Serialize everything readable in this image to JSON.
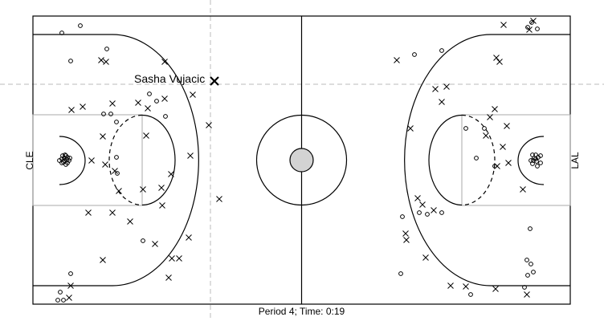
{
  "chart_data": {
    "type": "scatter",
    "title": "",
    "team_left": "CLE",
    "team_right": "LAL",
    "caption": "Period 4; Time: 0:19",
    "highlight": {
      "player": "Sasha Vujacic",
      "x": 267,
      "y": 101,
      "result": "miss"
    },
    "crosshair": {
      "x": 262,
      "y": 105
    },
    "series": [
      {
        "result": "made",
        "marker": "circle",
        "points": [
          [
            77,
            41
          ],
          [
            100,
            32
          ],
          [
            88,
            76
          ],
          [
            133,
            61
          ],
          [
            186,
            117
          ],
          [
            145,
            152
          ],
          [
            138,
            142
          ],
          [
            129,
            142
          ],
          [
            145,
            196
          ],
          [
            146,
            216
          ],
          [
            195,
            126
          ],
          [
            206,
            145
          ],
          [
            178,
            300
          ],
          [
            88,
            341
          ],
          [
            75,
            364
          ],
          [
            72,
            374
          ],
          [
            79,
            374
          ],
          [
            78,
            194
          ],
          [
            82,
            194
          ],
          [
            84,
            196
          ],
          [
            80,
            197
          ],
          [
            77,
            198
          ],
          [
            80,
            200
          ],
          [
            86,
            200
          ],
          [
            79,
            202
          ],
          [
            84,
            203
          ],
          [
            82,
            205
          ],
          [
            77,
            203
          ],
          [
            74,
            200
          ],
          [
            87,
            197
          ],
          [
            83,
            199
          ],
          [
            81,
            193
          ],
          [
            516,
            68
          ],
          [
            550,
            63
          ],
          [
            657,
            34
          ],
          [
            662,
            28
          ],
          [
            669,
            36
          ],
          [
            580,
            160
          ],
          [
            603,
            160
          ],
          [
            593,
            197
          ],
          [
            616,
            207
          ],
          [
            501,
            270
          ],
          [
            522,
            265
          ],
          [
            532,
            267
          ],
          [
            550,
            265
          ],
          [
            660,
            285
          ],
          [
            656,
            324
          ],
          [
            661,
            329
          ],
          [
            664,
            339
          ],
          [
            657,
            343
          ],
          [
            653,
            358
          ],
          [
            499,
            341
          ],
          [
            586,
            367
          ],
          [
            663,
            193
          ],
          [
            667,
            193
          ],
          [
            665,
            197
          ],
          [
            670,
            196
          ],
          [
            664,
            200
          ],
          [
            668,
            201
          ],
          [
            673,
            203
          ],
          [
            663,
            204
          ],
          [
            669,
            207
          ],
          [
            673,
            194
          ],
          [
            667,
            198
          ],
          [
            661,
            200
          ]
        ]
      },
      {
        "result": "missed",
        "marker": "x",
        "points": [
          [
            205,
            77
          ],
          [
            126,
            75
          ],
          [
            132,
            77
          ],
          [
            103,
            133
          ],
          [
            89,
            137
          ],
          [
            140,
            129
          ],
          [
            172,
            128
          ],
          [
            184,
            135
          ],
          [
            205,
            123
          ],
          [
            128,
            170
          ],
          [
            182,
            169
          ],
          [
            240,
            118
          ],
          [
            260,
            156
          ],
          [
            237,
            194
          ],
          [
            114,
            200
          ],
          [
            131,
            205
          ],
          [
            143,
            213
          ],
          [
            213,
            217
          ],
          [
            201,
            234
          ],
          [
            178,
            236
          ],
          [
            148,
            238
          ],
          [
            110,
            265
          ],
          [
            140,
            265
          ],
          [
            162,
            276
          ],
          [
            202,
            256
          ],
          [
            273,
            248
          ],
          [
            235,
            296
          ],
          [
            193,
            304
          ],
          [
            214,
            322
          ],
          [
            223,
            322
          ],
          [
            128,
            324
          ],
          [
            210,
            346
          ],
          [
            88,
            356
          ],
          [
            86,
            371
          ],
          [
            494,
            75
          ],
          [
            618,
            72
          ],
          [
            622,
            77
          ],
          [
            627,
            31
          ],
          [
            659,
            37
          ],
          [
            664,
            26
          ],
          [
            542,
            111
          ],
          [
            556,
            108
          ],
          [
            550,
            127
          ],
          [
            616,
            136
          ],
          [
            610,
            146
          ],
          [
            631,
            157
          ],
          [
            605,
            169
          ],
          [
            626,
            183
          ],
          [
            511,
            160
          ],
          [
            633,
            203
          ],
          [
            619,
            207
          ],
          [
            651,
            236
          ],
          [
            520,
            247
          ],
          [
            526,
            255
          ],
          [
            540,
            262
          ],
          [
            505,
            291
          ],
          [
            506,
            299
          ],
          [
            530,
            321
          ],
          [
            561,
            356
          ],
          [
            580,
            357
          ],
          [
            617,
            360
          ],
          [
            656,
            367
          ]
        ]
      }
    ]
  }
}
